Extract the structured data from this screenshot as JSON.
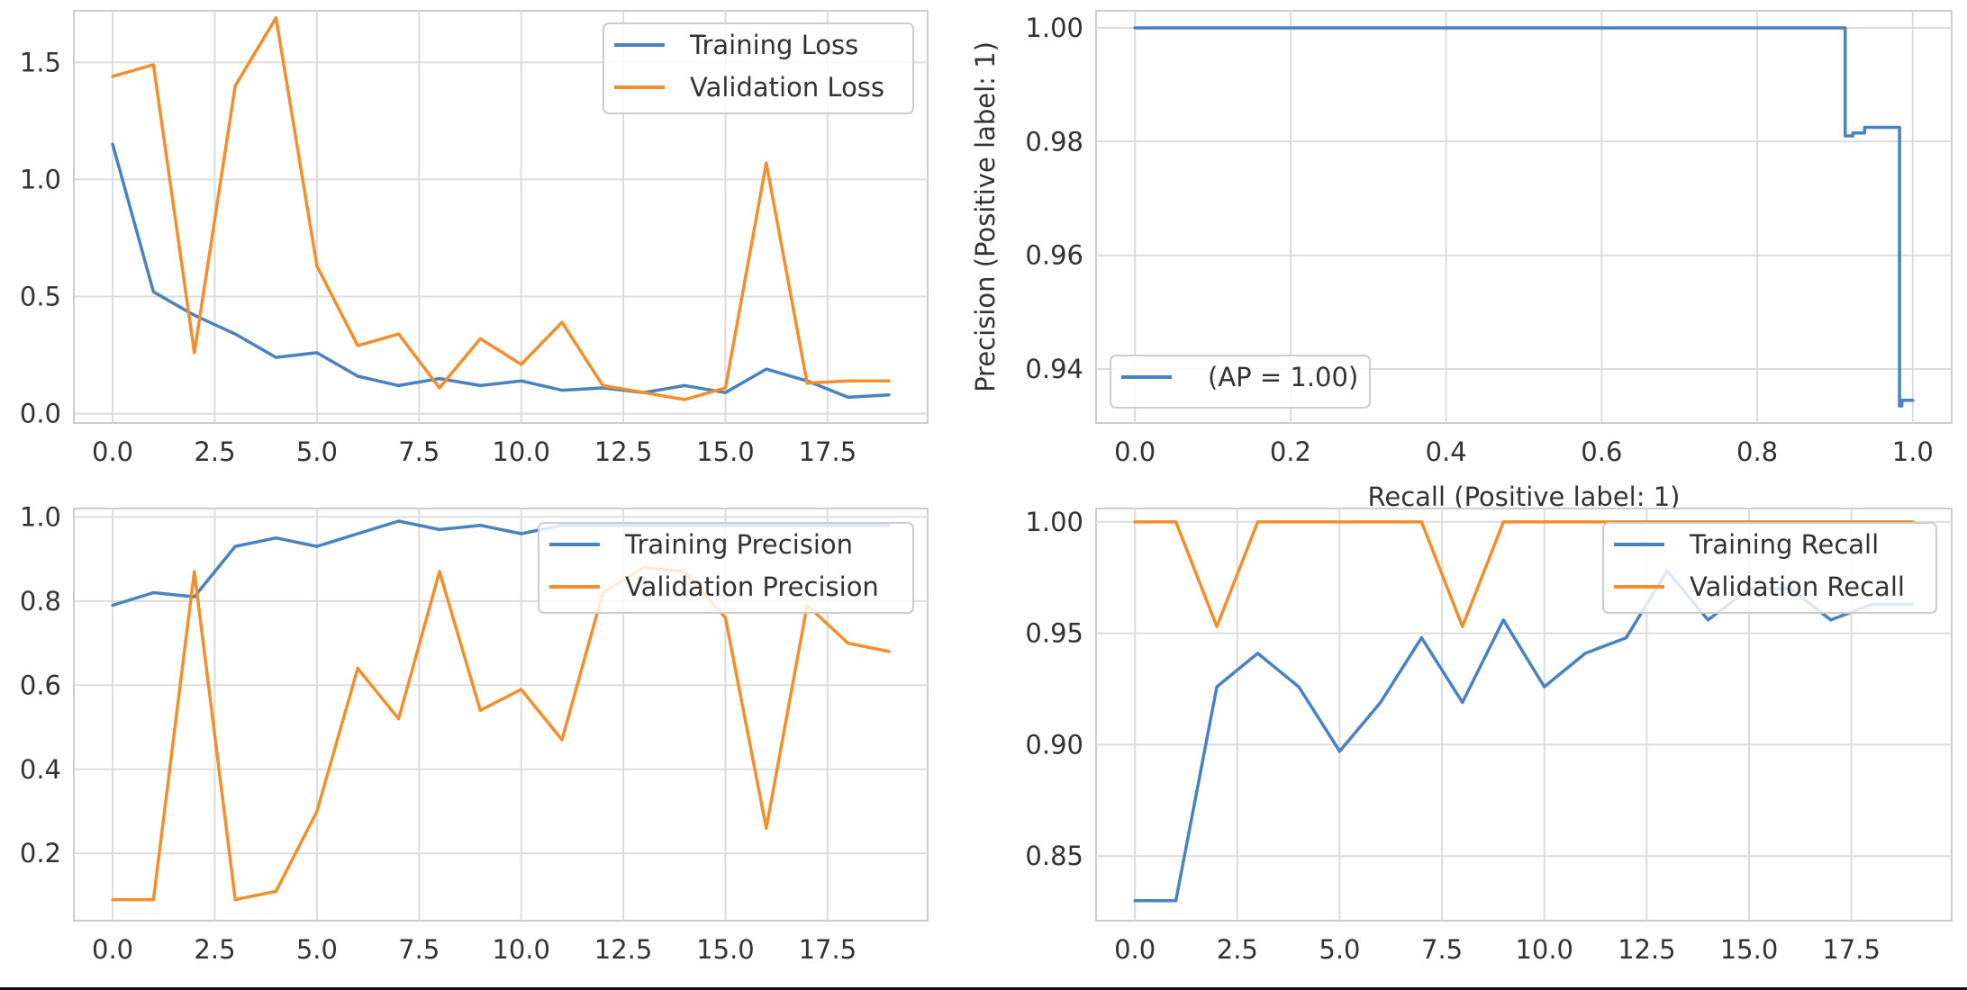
{
  "colors": {
    "blue": "#4a81bf",
    "orange": "#f28e2b"
  },
  "chart_data": [
    {
      "type": "line",
      "title": "",
      "xlabel": "",
      "ylabel": "",
      "xlim": [
        -0.95,
        19.95
      ],
      "ylim": [
        -0.04,
        1.72
      ],
      "xticks": [
        0,
        2.5,
        5,
        7.5,
        10,
        12.5,
        15,
        17.5
      ],
      "xtick_labels": [
        "0.0",
        "2.5",
        "5.0",
        "7.5",
        "10.0",
        "12.5",
        "15.0",
        "17.5"
      ],
      "yticks": [
        0,
        0.5,
        1.0,
        1.5
      ],
      "ytick_labels": [
        "0.0",
        "0.5",
        "1.0",
        "1.5"
      ],
      "grid": true,
      "legend": "top-right",
      "x": [
        0,
        1,
        2,
        3,
        4,
        5,
        6,
        7,
        8,
        9,
        10,
        11,
        12,
        13,
        14,
        15,
        16,
        17,
        18,
        19
      ],
      "series": [
        {
          "name": "Training Loss",
          "color": "blue",
          "values": [
            1.15,
            0.52,
            0.42,
            0.34,
            0.24,
            0.26,
            0.16,
            0.12,
            0.15,
            0.12,
            0.14,
            0.1,
            0.11,
            0.09,
            0.12,
            0.09,
            0.19,
            0.14,
            0.07,
            0.08
          ]
        },
        {
          "name": "Validation Loss",
          "color": "orange",
          "values": [
            1.44,
            1.49,
            0.26,
            1.4,
            1.69,
            0.63,
            0.29,
            0.34,
            0.11,
            0.32,
            0.21,
            0.39,
            0.12,
            0.09,
            0.06,
            0.11,
            1.07,
            0.13,
            0.14,
            0.14
          ]
        }
      ]
    },
    {
      "type": "line",
      "title": "",
      "xlabel": "Recall (Positive label: 1)",
      "ylabel": "Precision (Positive label: 1)",
      "xlim": [
        -0.05,
        1.05
      ],
      "ylim": [
        0.9305,
        1.003
      ],
      "xticks": [
        0,
        0.2,
        0.4,
        0.6,
        0.8,
        1.0
      ],
      "xtick_labels": [
        "0.0",
        "0.2",
        "0.4",
        "0.6",
        "0.8",
        "1.0"
      ],
      "yticks": [
        0.94,
        0.96,
        0.98,
        1.0
      ],
      "ytick_labels": [
        "0.94",
        "0.96",
        "0.98",
        "1.00"
      ],
      "grid": true,
      "legend": "bottom-left",
      "series": [
        {
          "name": "(AP = 1.00)",
          "color": "blue",
          "x": [
            0,
            0.913,
            0.913,
            0.923,
            0.923,
            0.938,
            0.938,
            0.983,
            0.983,
            0.986,
            0.986,
            1.0
          ],
          "y": [
            1.0,
            1.0,
            0.981,
            0.981,
            0.9815,
            0.9815,
            0.9825,
            0.9825,
            0.9335,
            0.9335,
            0.9345,
            0.9345
          ]
        }
      ]
    },
    {
      "type": "line",
      "title": "",
      "xlabel": "",
      "ylabel": "",
      "xlim": [
        -0.95,
        19.95
      ],
      "ylim": [
        0.04,
        1.02
      ],
      "xticks": [
        0,
        2.5,
        5,
        7.5,
        10,
        12.5,
        15,
        17.5
      ],
      "xtick_labels": [
        "0.0",
        "2.5",
        "5.0",
        "7.5",
        "10.0",
        "12.5",
        "15.0",
        "17.5"
      ],
      "yticks": [
        0.2,
        0.4,
        0.6,
        0.8,
        1.0
      ],
      "ytick_labels": [
        "0.2",
        "0.4",
        "0.6",
        "0.8",
        "1.0"
      ],
      "grid": true,
      "legend": "top-right",
      "x": [
        0,
        1,
        2,
        3,
        4,
        5,
        6,
        7,
        8,
        9,
        10,
        11,
        12,
        13,
        14,
        15,
        16,
        17,
        18,
        19
      ],
      "series": [
        {
          "name": "Training Precision",
          "color": "blue",
          "values": [
            0.79,
            0.82,
            0.81,
            0.93,
            0.95,
            0.93,
            0.96,
            0.99,
            0.97,
            0.98,
            0.96,
            0.98,
            0.98,
            0.98,
            0.98,
            0.98,
            0.98,
            0.98,
            0.98,
            0.98
          ]
        },
        {
          "name": "Validation Precision",
          "color": "orange",
          "values": [
            0.09,
            0.09,
            0.87,
            0.09,
            0.11,
            0.3,
            0.64,
            0.52,
            0.87,
            0.54,
            0.59,
            0.47,
            0.82,
            0.88,
            0.87,
            0.76,
            0.26,
            0.79,
            0.7,
            0.68
          ]
        }
      ]
    },
    {
      "type": "line",
      "title": "",
      "xlabel": "",
      "ylabel": "",
      "xlim": [
        -0.95,
        19.95
      ],
      "ylim": [
        0.821,
        1.006
      ],
      "xticks": [
        0,
        2.5,
        5,
        7.5,
        10,
        12.5,
        15,
        17.5
      ],
      "xtick_labels": [
        "0.0",
        "2.5",
        "5.0",
        "7.5",
        "10.0",
        "12.5",
        "15.0",
        "17.5"
      ],
      "yticks": [
        0.85,
        0.9,
        0.95,
        1.0
      ],
      "ytick_labels": [
        "0.85",
        "0.90",
        "0.95",
        "1.00"
      ],
      "grid": true,
      "legend": "top-right",
      "x": [
        0,
        1,
        2,
        3,
        4,
        5,
        6,
        7,
        8,
        9,
        10,
        11,
        12,
        13,
        14,
        15,
        16,
        17,
        18,
        19
      ],
      "series": [
        {
          "name": "Training Recall",
          "color": "blue",
          "values": [
            0.83,
            0.83,
            0.926,
            0.941,
            0.926,
            0.897,
            0.919,
            0.948,
            0.919,
            0.956,
            0.926,
            0.941,
            0.948,
            0.978,
            0.956,
            0.97,
            0.97,
            0.956,
            0.963,
            0.963
          ]
        },
        {
          "name": "Validation Recall",
          "color": "orange",
          "values": [
            1.0,
            1.0,
            0.953,
            1.0,
            1.0,
            1.0,
            1.0,
            1.0,
            0.953,
            1.0,
            1.0,
            1.0,
            1.0,
            1.0,
            1.0,
            1.0,
            1.0,
            1.0,
            1.0,
            1.0
          ]
        }
      ]
    }
  ]
}
